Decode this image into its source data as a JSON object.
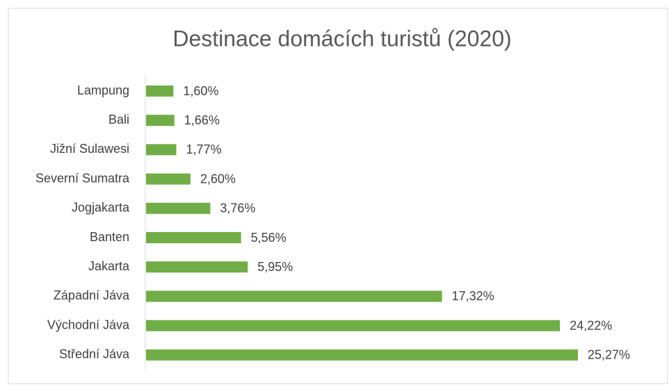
{
  "chart_data": {
    "type": "bar",
    "orientation": "horizontal",
    "title": "Destinace domácích turistů (2020)",
    "categories": [
      "Lampung",
      "Bali",
      "Jižní Sulawesi",
      "Severní Sumatra",
      "Jogjakarta",
      "Banten",
      "Jakarta",
      "Západní Jáva",
      "Východní Jáva",
      "Střední Jáva"
    ],
    "values": [
      1.6,
      1.66,
      1.77,
      2.6,
      3.76,
      5.56,
      5.95,
      17.32,
      24.22,
      25.27
    ],
    "value_labels": [
      "1,60%",
      "1,66%",
      "1,77%",
      "2,60%",
      "3,76%",
      "5,56%",
      "5,95%",
      "17,32%",
      "24,22%",
      "25,27%"
    ],
    "color": "#70ad47"
  }
}
